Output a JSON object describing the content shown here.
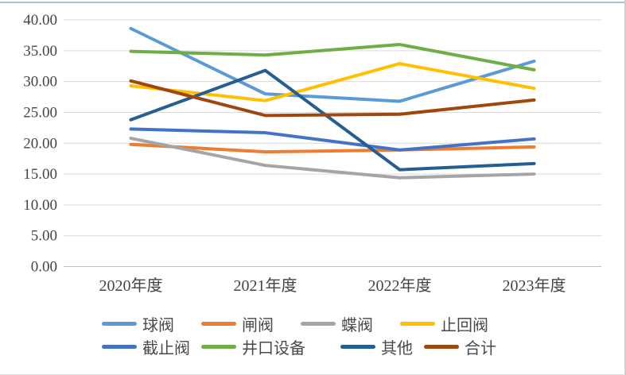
{
  "chart_data": {
    "type": "line",
    "title": "",
    "categories": [
      "2020年度",
      "2021年度",
      "2022年度",
      "2023年度"
    ],
    "series": [
      {
        "name": "球阀",
        "color": "#5B9BD5",
        "values": [
          38.6,
          28.0,
          26.8,
          33.3
        ]
      },
      {
        "name": "闸阀",
        "color": "#ED7D31",
        "values": [
          19.8,
          18.6,
          18.9,
          19.4
        ]
      },
      {
        "name": "蝶阀",
        "color": "#A5A5A5",
        "values": [
          20.8,
          16.4,
          14.4,
          15.0
        ]
      },
      {
        "name": "止回阀",
        "color": "#FFC000",
        "values": [
          29.3,
          26.9,
          32.9,
          28.9
        ]
      },
      {
        "name": "截止阀",
        "color": "#4472C4",
        "values": [
          22.3,
          21.7,
          18.9,
          20.7
        ]
      },
      {
        "name": "井口设备",
        "color": "#70AD47",
        "values": [
          34.9,
          34.3,
          36.0,
          31.9
        ]
      },
      {
        "name": "其他",
        "color": "#255E91",
        "values": [
          23.8,
          31.8,
          15.7,
          16.7
        ]
      },
      {
        "name": "合计",
        "color": "#9E480E",
        "values": [
          30.1,
          24.5,
          24.7,
          27.0
        ]
      }
    ],
    "y_axis": {
      "min": 0,
      "max": 40,
      "step": 5,
      "tick_labels": [
        "0.00",
        "5.00",
        "10.00",
        "15.00",
        "20.00",
        "25.00",
        "30.00",
        "35.00",
        "40.00"
      ]
    },
    "grid": true,
    "legend_position": "bottom",
    "legend_rows": [
      [
        "球阀",
        "闸阀",
        "蝶阀",
        "止回阀"
      ],
      [
        "截止阀",
        "井口设备",
        "其他",
        "合计"
      ]
    ]
  },
  "frame": {
    "background": "#ffffff",
    "top_border_color": "#a9c2e2",
    "gridline_color": "#d9d9d9",
    "axis_color": "#bfbfbf",
    "label_color": "#444444"
  }
}
